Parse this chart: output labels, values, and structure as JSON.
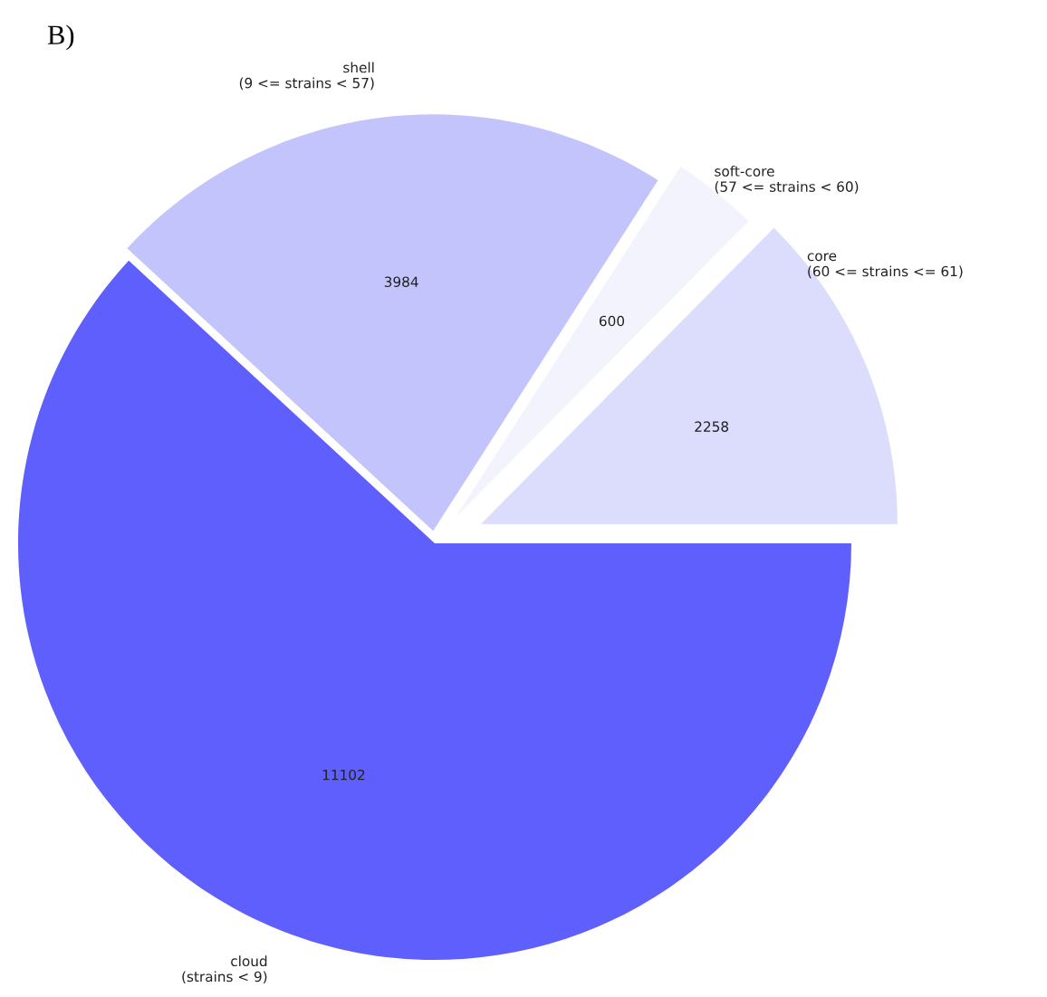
{
  "chart_data": {
    "type": "pie",
    "title": "B)",
    "categories": [
      "core\n(60 <= strains <= 61)",
      "soft-core\n(57 <= strains < 60)",
      "shell\n(9 <= strains < 57)",
      "cloud\n(strains < 9)"
    ],
    "values": [
      2258,
      600,
      3984,
      11102
    ],
    "colors": [
      "#dcdcfc",
      "#f3f3fd",
      "#c4c4fc",
      "#5f5ffd"
    ],
    "data_labels": true,
    "legend": false
  }
}
